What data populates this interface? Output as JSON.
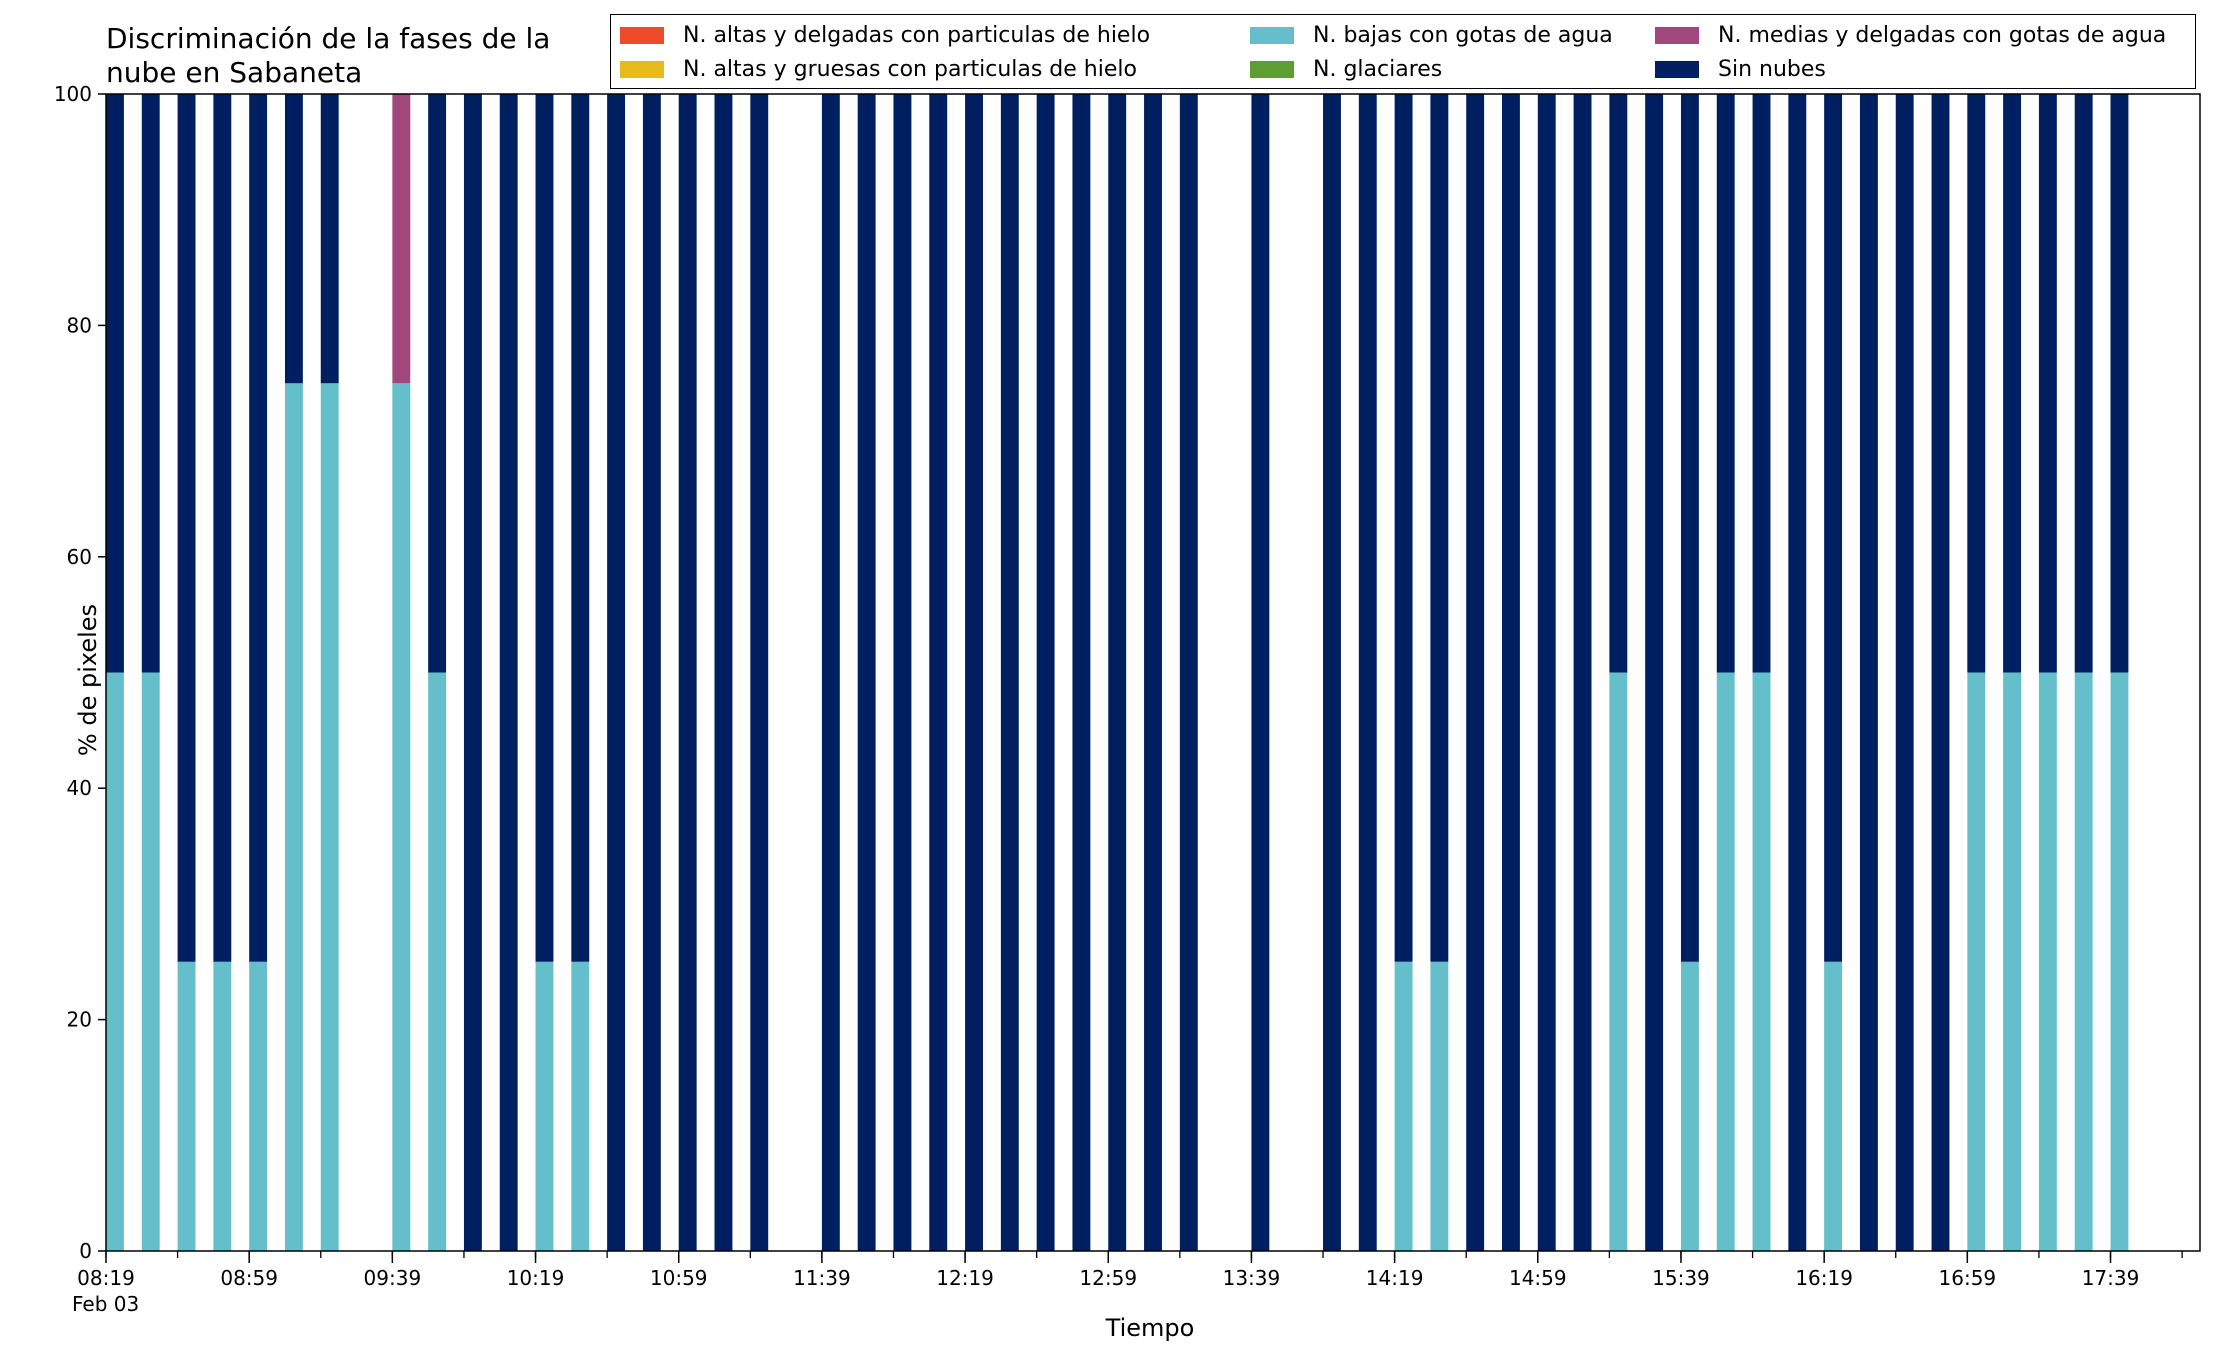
{
  "chart_data": {
    "type": "bar",
    "stacked": true,
    "title": "Discriminación de la fases de la nube en Sabaneta",
    "title_lines": [
      "Discriminación de la fases de la",
      "nube en Sabaneta"
    ],
    "xlabel": "Tiempo",
    "ylabel": "% de pixeles",
    "ylim": [
      0,
      100
    ],
    "yticks": [
      0,
      20,
      40,
      60,
      80,
      100
    ],
    "date_label": "Feb 03",
    "x_start": "08:19",
    "x_end": "18:04",
    "slot_minutes": 10,
    "bar_minutes": 5,
    "xtick_labels": [
      "08:19",
      "08:59",
      "09:39",
      "10:19",
      "10:59",
      "11:39",
      "12:19",
      "12:59",
      "13:39",
      "14:19",
      "14:59",
      "15:39",
      "16:19",
      "16:59",
      "17:39"
    ],
    "minor_tick_minutes": 20,
    "legend_placement": "top",
    "series": [
      {
        "name": "N. altas y delgadas con particulas de hielo",
        "color": "#ee4b2b",
        "values": [
          0,
          0,
          0,
          0,
          0,
          0,
          0,
          null,
          0,
          0,
          0,
          0,
          0,
          0,
          0,
          0,
          0,
          0,
          0,
          null,
          0,
          0,
          0,
          0,
          0,
          0,
          0,
          0,
          0,
          0,
          0,
          null,
          0,
          null,
          0,
          0,
          0,
          0,
          0,
          0,
          0,
          0,
          0,
          0,
          0,
          0,
          0,
          0,
          0,
          0,
          0,
          0,
          0,
          0,
          0,
          0,
          0
        ]
      },
      {
        "name": "N. altas y gruesas con particulas de hielo",
        "color": "#e5bb1b",
        "values": [
          0,
          0,
          0,
          0,
          0,
          0,
          0,
          null,
          0,
          0,
          0,
          0,
          0,
          0,
          0,
          0,
          0,
          0,
          0,
          null,
          0,
          0,
          0,
          0,
          0,
          0,
          0,
          0,
          0,
          0,
          0,
          null,
          0,
          null,
          0,
          0,
          0,
          0,
          0,
          0,
          0,
          0,
          0,
          0,
          0,
          0,
          0,
          0,
          0,
          0,
          0,
          0,
          0,
          0,
          0,
          0,
          0
        ]
      },
      {
        "name": "N. bajas con gotas de agua",
        "color": "#64bfca",
        "values": [
          50,
          50,
          25,
          25,
          25,
          75,
          75,
          null,
          75,
          50,
          0,
          0,
          25,
          25,
          0,
          0,
          0,
          0,
          0,
          null,
          0,
          0,
          0,
          0,
          0,
          0,
          0,
          0,
          0,
          0,
          0,
          null,
          0,
          null,
          0,
          0,
          25,
          25,
          0,
          0,
          0,
          0,
          50,
          0,
          25,
          50,
          50,
          0,
          25,
          0,
          0,
          0,
          50,
          50,
          50,
          50,
          50
        ]
      },
      {
        "name": "N. glaciares",
        "color": "#5c9e31",
        "values": [
          0,
          0,
          0,
          0,
          0,
          0,
          0,
          null,
          0,
          0,
          0,
          0,
          0,
          0,
          0,
          0,
          0,
          0,
          0,
          null,
          0,
          0,
          0,
          0,
          0,
          0,
          0,
          0,
          0,
          0,
          0,
          null,
          0,
          null,
          0,
          0,
          0,
          0,
          0,
          0,
          0,
          0,
          0,
          0,
          0,
          0,
          0,
          0,
          0,
          0,
          0,
          0,
          0,
          0,
          0,
          0,
          0
        ]
      },
      {
        "name": "N. medias y delgadas con gotas de agua",
        "color": "#a2477c",
        "values": [
          0,
          0,
          0,
          0,
          0,
          0,
          0,
          null,
          25,
          0,
          0,
          0,
          0,
          0,
          0,
          0,
          0,
          0,
          0,
          null,
          0,
          0,
          0,
          0,
          0,
          0,
          0,
          0,
          0,
          0,
          0,
          null,
          0,
          null,
          0,
          0,
          0,
          0,
          0,
          0,
          0,
          0,
          0,
          0,
          0,
          0,
          0,
          0,
          0,
          0,
          0,
          0,
          0,
          0,
          0,
          0,
          0
        ]
      },
      {
        "name": "Sin nubes",
        "color": "#001f60",
        "values": [
          50,
          50,
          75,
          75,
          75,
          25,
          25,
          null,
          0,
          50,
          100,
          100,
          75,
          75,
          100,
          100,
          100,
          100,
          100,
          null,
          100,
          100,
          100,
          100,
          100,
          100,
          100,
          100,
          100,
          100,
          100,
          null,
          100,
          null,
          100,
          100,
          75,
          75,
          100,
          100,
          100,
          100,
          50,
          100,
          75,
          50,
          50,
          100,
          75,
          100,
          100,
          100,
          50,
          50,
          50,
          50,
          50
        ]
      }
    ]
  }
}
